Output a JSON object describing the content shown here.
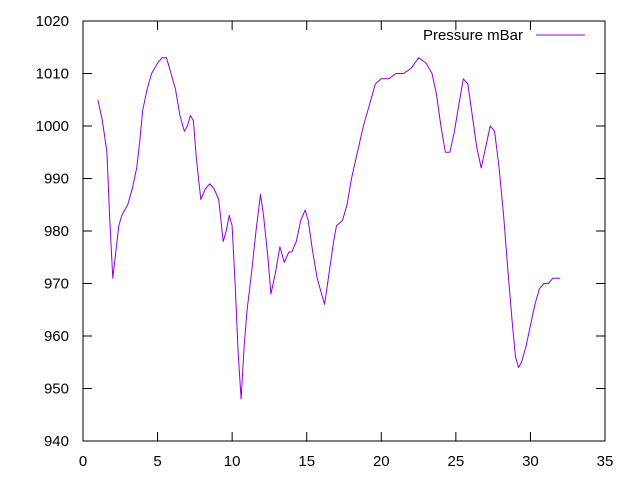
{
  "chart_data": {
    "type": "line",
    "title": "",
    "xlabel": "",
    "ylabel": "",
    "xlim": [
      0,
      35
    ],
    "ylim": [
      940,
      1020
    ],
    "xticks": [
      0,
      5,
      10,
      15,
      20,
      25,
      30,
      35
    ],
    "yticks": [
      940,
      950,
      960,
      970,
      980,
      990,
      1000,
      1010,
      1020
    ],
    "grid": false,
    "legend_position": "top-right",
    "series": [
      {
        "name": "Pressure mBar",
        "color": "#9400d3",
        "x": [
          1.0,
          1.3,
          1.6,
          1.8,
          2.0,
          2.2,
          2.4,
          2.6,
          3.0,
          3.3,
          3.6,
          3.8,
          4.0,
          4.3,
          4.6,
          5.0,
          5.3,
          5.6,
          5.9,
          6.2,
          6.5,
          6.8,
          7.0,
          7.2,
          7.4,
          7.6,
          7.9,
          8.2,
          8.5,
          8.8,
          9.1,
          9.4,
          9.6,
          9.8,
          10.0,
          10.2,
          10.4,
          10.6,
          10.8,
          11.0,
          11.3,
          11.6,
          11.9,
          12.1,
          12.4,
          12.6,
          12.9,
          13.2,
          13.5,
          13.8,
          14.0,
          14.3,
          14.6,
          14.9,
          15.1,
          15.4,
          15.7,
          16.0,
          16.2,
          16.5,
          16.8,
          17.0,
          17.4,
          17.7,
          18.0,
          18.4,
          18.8,
          19.2,
          19.6,
          20.0,
          20.5,
          21.0,
          21.5,
          22.0,
          22.5,
          23.0,
          23.4,
          23.7,
          24.0,
          24.3,
          24.6,
          24.9,
          25.2,
          25.5,
          25.8,
          26.1,
          26.4,
          26.7,
          27.0,
          27.3,
          27.6,
          27.9,
          28.2,
          28.5,
          28.8,
          29.0,
          29.2,
          29.4,
          29.7,
          30.0,
          30.3,
          30.6,
          30.9,
          31.2,
          31.5,
          31.8,
          32.0
        ],
        "values": [
          1005,
          1001,
          995,
          982,
          971,
          976,
          981,
          983,
          985,
          988,
          992,
          997,
          1003,
          1007,
          1010,
          1012,
          1013,
          1013,
          1010,
          1007,
          1002,
          999,
          1000,
          1002,
          1001,
          994,
          986,
          988,
          989,
          988,
          986,
          978,
          980,
          983,
          981,
          970,
          957,
          948,
          958,
          965,
          972,
          980,
          987,
          983,
          975,
          968,
          972,
          977,
          974,
          976,
          976,
          978,
          982,
          984,
          982,
          976,
          971,
          968,
          966,
          972,
          978,
          981,
          982,
          985,
          990,
          995,
          1000,
          1004,
          1008,
          1009,
          1009,
          1010,
          1010,
          1011,
          1013,
          1012,
          1010,
          1006,
          1000,
          995,
          995,
          999,
          1004,
          1009,
          1008,
          1002,
          996,
          992,
          996,
          1000,
          999,
          992,
          983,
          972,
          962,
          956,
          954,
          955,
          958,
          962,
          966,
          969,
          970,
          970,
          971,
          971,
          971
        ]
      }
    ]
  }
}
